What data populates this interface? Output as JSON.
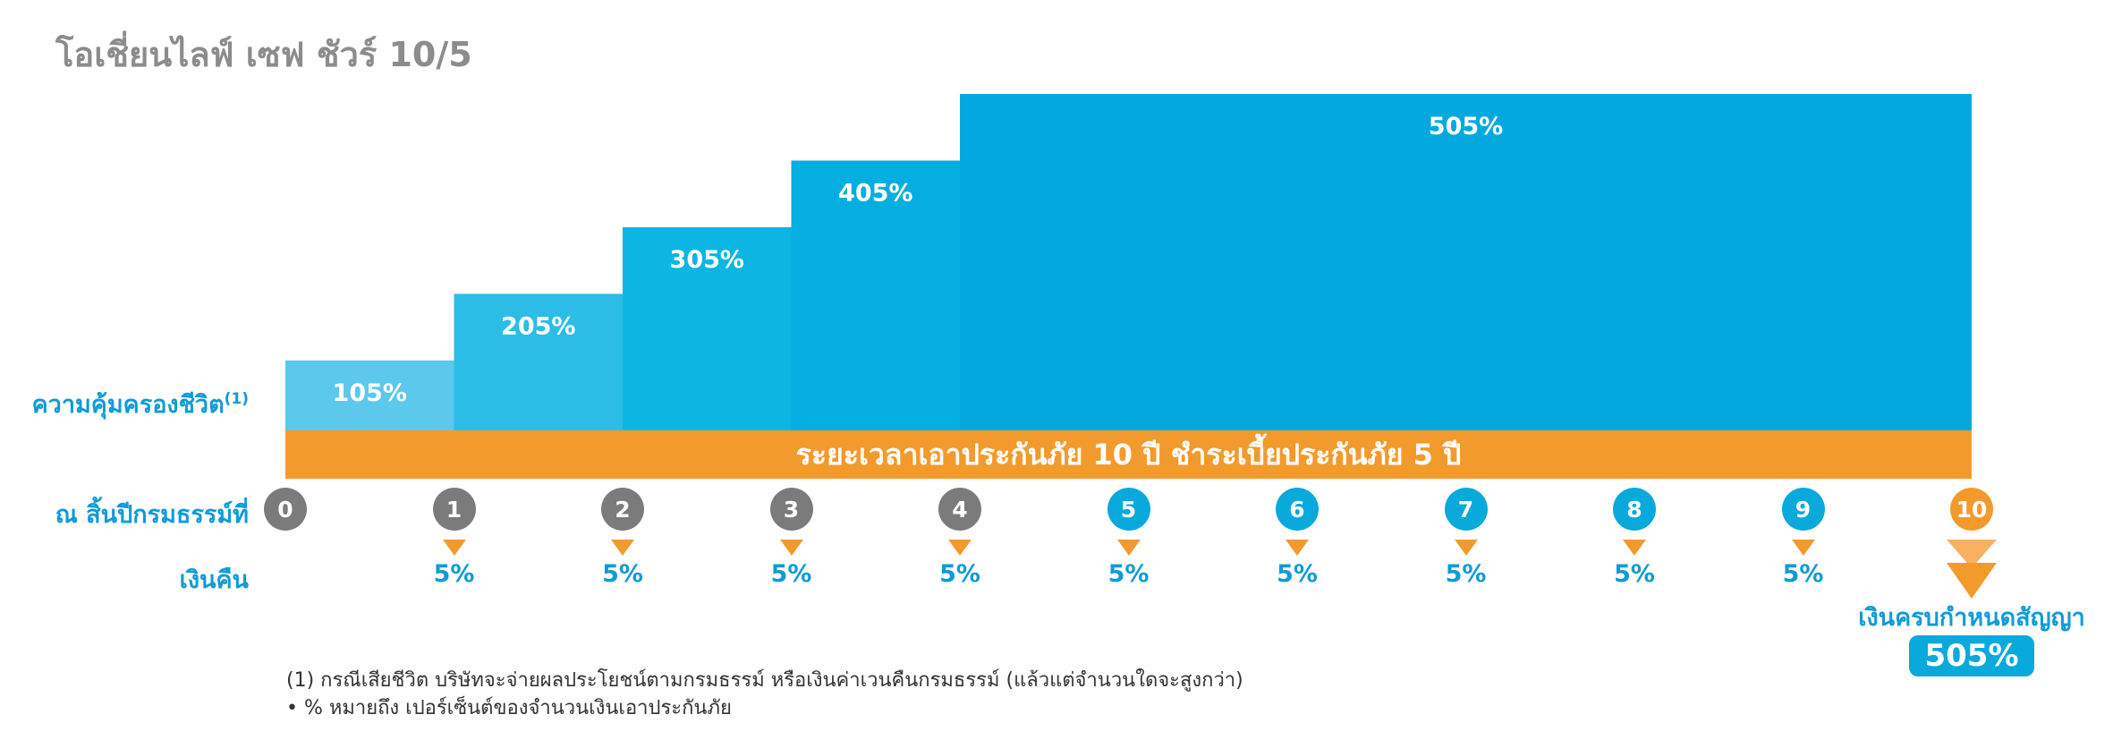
{
  "title": "โอเชี่ยนไลฟ์ เซฟ ชัวร์ 10/5",
  "colors": {
    "step_colors": [
      "#5bc8ec",
      "#2bbde6",
      "#0cb6e2",
      "#05aee0",
      "#03a9de"
    ],
    "band": "#f39a2c",
    "label_blue": "#0f9bd7",
    "circle_gray": "#7b7b7b",
    "circle_blue": "#0aa9dc",
    "circle_orange": "#f39a2c"
  },
  "chart_data": {
    "type": "bar",
    "title": "ความคุ้มครองชีวิต",
    "categories": [
      "0",
      "1",
      "2",
      "3",
      "4",
      "10"
    ],
    "values": [
      105,
      205,
      305,
      405,
      505
    ],
    "step_spans": [
      [
        0,
        1
      ],
      [
        1,
        2
      ],
      [
        2,
        3
      ],
      [
        3,
        4
      ],
      [
        4,
        10
      ]
    ],
    "labels": [
      "105%",
      "205%",
      "305%",
      "405%",
      "505%"
    ],
    "ylim": [
      0,
      505
    ]
  },
  "labels": {
    "coverage": "ความคุ้มครองชีวิต",
    "coverage_note": "(1)",
    "year_end": "ณ สิ้นปีกรมธรรม์ที่",
    "refund": "เงินคืน"
  },
  "band_text": "ระยะเวลาเอาประกันภัย 10 ปี ชำระเบี้ยประกันภัย 5 ปี",
  "years": [
    {
      "label": "0",
      "type": "gray"
    },
    {
      "label": "1",
      "type": "gray"
    },
    {
      "label": "2",
      "type": "gray"
    },
    {
      "label": "3",
      "type": "gray"
    },
    {
      "label": "4",
      "type": "gray"
    },
    {
      "label": "5",
      "type": "blue"
    },
    {
      "label": "6",
      "type": "blue"
    },
    {
      "label": "7",
      "type": "blue"
    },
    {
      "label": "8",
      "type": "blue"
    },
    {
      "label": "9",
      "type": "blue"
    },
    {
      "label": "10",
      "type": "orange"
    }
  ],
  "refunds": [
    {
      "year": "1",
      "text": "5%"
    },
    {
      "year": "2",
      "text": "5%"
    },
    {
      "year": "3",
      "text": "5%"
    },
    {
      "year": "4",
      "text": "5%"
    },
    {
      "year": "5",
      "text": "5%"
    },
    {
      "year": "6",
      "text": "5%"
    },
    {
      "year": "7",
      "text": "5%"
    },
    {
      "year": "8",
      "text": "5%"
    },
    {
      "year": "9",
      "text": "5%"
    }
  ],
  "maturity": {
    "label": "เงินครบกำหนดสัญญา",
    "value": "505%"
  },
  "notes": {
    "line1": "(1)  กรณีเสียชีวิต บริษัทจะจ่ายผลประโยชน์ตามกรมธรรม์ หรือเงินค่าเวนคืนกรมธรรม์ (แล้วแต่จำนวนใดจะสูงกว่า)",
    "line2": "• % หมายถึง เปอร์เซ็นต์ของจำนวนเงินเอาประกันภัย"
  }
}
